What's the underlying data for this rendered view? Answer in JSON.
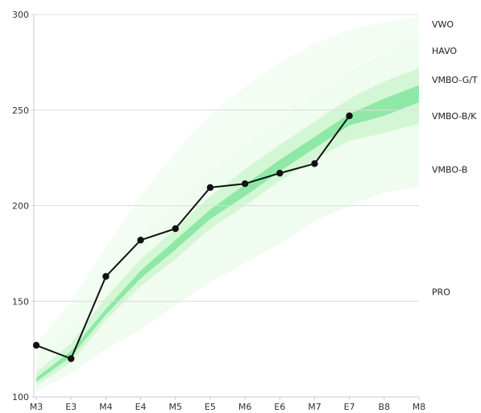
{
  "chart_data": {
    "type": "line",
    "title": "",
    "xlabel": "",
    "ylabel": "",
    "categories": [
      "M3",
      "E3",
      "M4",
      "E4",
      "M5",
      "E5",
      "M6",
      "E6",
      "M7",
      "E7",
      "B8",
      "M8"
    ],
    "ylim": [
      100,
      300
    ],
    "yticks": [
      100,
      150,
      200,
      250,
      300
    ],
    "grid": "horizontal",
    "series": [
      {
        "values": [
          127,
          120,
          163,
          182,
          188,
          209.5,
          211.5,
          217,
          222,
          247,
          null,
          null
        ]
      }
    ],
    "level_labels": [
      {
        "text": "VWO",
        "y": 295
      },
      {
        "text": "HAVO",
        "y": 281
      },
      {
        "text": "VMBO-G/T",
        "y": 266
      },
      {
        "text": "VMBO-B/K",
        "y": 247
      },
      {
        "text": "VMBO-B",
        "y": 219
      },
      {
        "text": "PRO",
        "y": 155
      }
    ],
    "bands": [
      {
        "name": "outer",
        "color": "#f0fcef",
        "upper": [
          120,
          140,
          165,
          185,
          200,
          218,
          232,
          245,
          258,
          270,
          280,
          290
        ],
        "lower": [
          103,
          112,
          125,
          135,
          148,
          160,
          170,
          180,
          192,
          200,
          207,
          210
        ]
      },
      {
        "name": "middle",
        "color": "#d3f7d5",
        "upper": [
          113,
          128,
          152,
          172,
          188,
          205,
          219,
          232,
          244,
          256,
          265,
          272
        ],
        "lower": [
          106,
          118,
          140,
          158,
          172,
          188,
          200,
          213,
          224,
          234,
          238,
          243
        ]
      },
      {
        "name": "inner",
        "color": "#8fe8a6",
        "upper": [
          110,
          124,
          146,
          166,
          182,
          198,
          211,
          224,
          236,
          248,
          256,
          263
        ],
        "lower": [
          108,
          121,
          143,
          162,
          177,
          193,
          205,
          218,
          230,
          242,
          247,
          254
        ]
      }
    ],
    "upper_zone": {
      "color": "#f4fdf3",
      "upper": [
        128,
        150,
        178,
        205,
        228,
        248,
        262,
        275,
        285,
        292,
        296,
        299
      ]
    },
    "colors": {
      "line": "#111111",
      "marker": "#111111",
      "axis": "#cccccc",
      "grid": "#dddddd"
    }
  }
}
